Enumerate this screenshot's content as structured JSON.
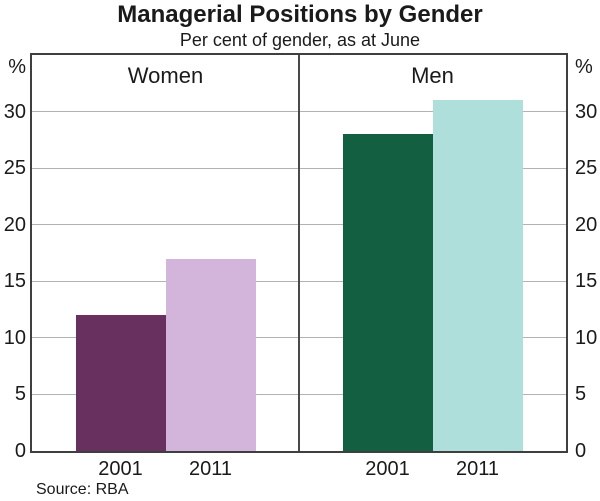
{
  "chart_data": {
    "type": "bar",
    "title": "Managerial Positions by Gender",
    "subtitle": "Per cent of gender, as at June",
    "unit_label": "%",
    "ylim": [
      0,
      35
    ],
    "yticks": [
      0,
      5,
      10,
      15,
      20,
      25,
      30
    ],
    "grid": true,
    "legend_position": "none",
    "panels": [
      {
        "label": "Women",
        "categories": [
          "2001",
          "2011"
        ],
        "values": [
          12,
          17
        ],
        "bar_colors": [
          "#68305f",
          "#d3b5db"
        ]
      },
      {
        "label": "Men",
        "categories": [
          "2001",
          "2011"
        ],
        "values": [
          28,
          31
        ],
        "bar_colors": [
          "#125f41",
          "#afdfdb"
        ]
      }
    ],
    "source": "Source: RBA"
  },
  "colors": {
    "frame": "#3f3f3f",
    "divider": "#4a4a4a",
    "gridline": "#b2b2b2",
    "text": "#1a1a1a",
    "women_2001": "#68305f",
    "women_2011": "#d3b5db",
    "men_2001": "#125f41",
    "men_2011": "#afdfdb"
  }
}
